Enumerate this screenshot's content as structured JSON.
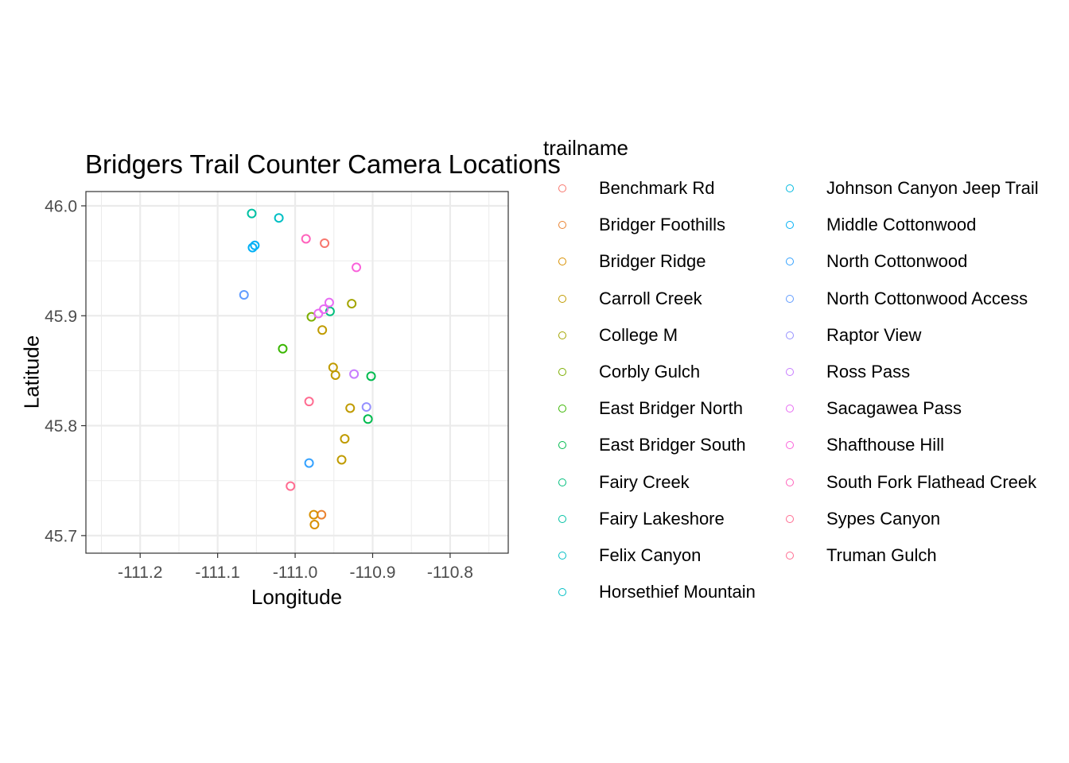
{
  "chart_data": {
    "type": "scatter",
    "title": "Bridgers Trail Counter Camera Locations",
    "xlabel": "Longitude",
    "ylabel": "Latitude",
    "xlim": [
      -111.27,
      -110.725
    ],
    "ylim": [
      45.684,
      46.013
    ],
    "x_ticks": [
      -111.2,
      -111.1,
      -111.0,
      -110.9,
      -110.8
    ],
    "x_tick_labels": [
      "-111.2",
      "-111.1",
      "-111.0",
      "-110.9",
      "-110.8"
    ],
    "y_ticks": [
      45.7,
      45.8,
      45.9,
      46.0
    ],
    "y_tick_labels": [
      "45.7",
      "45.8",
      "45.9",
      "46.0"
    ],
    "grid": true,
    "legend_placement": "right",
    "legend_title": "trailname",
    "series": [
      {
        "name": "Benchmark Rd",
        "color": "#F8766D",
        "points": [
          [
            -110.962,
            45.966
          ]
        ]
      },
      {
        "name": "Bridger Foothills",
        "color": "#EA8331",
        "points": [
          [
            -110.966,
            45.719
          ]
        ]
      },
      {
        "name": "Bridger Ridge",
        "color": "#D89000",
        "points": [
          [
            -110.976,
            45.719
          ],
          [
            -110.975,
            45.71
          ]
        ]
      },
      {
        "name": "Carroll Creek",
        "color": "#C09B00",
        "points": [
          [
            -110.951,
            45.853
          ],
          [
            -110.965,
            45.887
          ],
          [
            -110.948,
            45.846
          ],
          [
            -110.936,
            45.788
          ],
          [
            -110.94,
            45.769
          ],
          [
            -110.929,
            45.816
          ]
        ]
      },
      {
        "name": "College M",
        "color": "#A3A500",
        "points": [
          [
            -110.927,
            45.911
          ]
        ]
      },
      {
        "name": "Corbly Gulch",
        "color": "#7CAE00",
        "points": [
          [
            -110.979,
            45.899
          ]
        ]
      },
      {
        "name": "East Bridger North",
        "color": "#39B600",
        "points": [
          [
            -111.016,
            45.87
          ]
        ]
      },
      {
        "name": "East Bridger South",
        "color": "#00BB4E",
        "points": [
          [
            -110.902,
            45.845
          ],
          [
            -110.906,
            45.806
          ]
        ]
      },
      {
        "name": "Fairy Creek",
        "color": "#00BF7D",
        "points": [
          [
            -110.955,
            45.904
          ]
        ]
      },
      {
        "name": "Fairy Lakeshore",
        "color": "#00C1A3",
        "points": [
          [
            -111.056,
            45.993
          ]
        ]
      },
      {
        "name": "Felix Canyon",
        "color": "#00BFC4",
        "points": [
          [
            -111.021,
            45.989
          ]
        ]
      },
      {
        "name": "Horsethief Mountain",
        "color": "#00BFC4",
        "points": []
      },
      {
        "name": "Johnson Canyon Jeep Trail",
        "color": "#00BAE0",
        "points": []
      },
      {
        "name": "Middle Cottonwood",
        "color": "#00B0F6",
        "points": [
          [
            -111.052,
            45.964
          ],
          [
            -111.055,
            45.962
          ]
        ]
      },
      {
        "name": "North Cottonwood",
        "color": "#35A2FF",
        "points": [
          [
            -110.982,
            45.766
          ]
        ]
      },
      {
        "name": "North Cottonwood Access",
        "color": "#619CFF",
        "points": [
          [
            -111.066,
            45.919
          ]
        ]
      },
      {
        "name": "Raptor View",
        "color": "#9590FF",
        "points": [
          [
            -110.908,
            45.817
          ]
        ]
      },
      {
        "name": "Ross Pass",
        "color": "#C77CFF",
        "points": [
          [
            -110.924,
            45.847
          ]
        ]
      },
      {
        "name": "Sacagawea Pass",
        "color": "#E76BF3",
        "points": [
          [
            -110.97,
            45.902
          ],
          [
            -110.956,
            45.912
          ],
          [
            -110.963,
            45.906
          ]
        ]
      },
      {
        "name": "Shafthouse Hill",
        "color": "#FA62DB",
        "points": [
          [
            -110.921,
            45.944
          ]
        ]
      },
      {
        "name": "South Fork Flathead Creek",
        "color": "#FF62BC",
        "points": [
          [
            -110.986,
            45.97
          ]
        ]
      },
      {
        "name": "Sypes Canyon",
        "color": "#FF6C91",
        "points": [
          [
            -111.006,
            45.745
          ],
          [
            -110.982,
            45.822
          ]
        ]
      },
      {
        "name": "Truman Gulch",
        "color": "#FF6C91",
        "points": []
      }
    ]
  }
}
